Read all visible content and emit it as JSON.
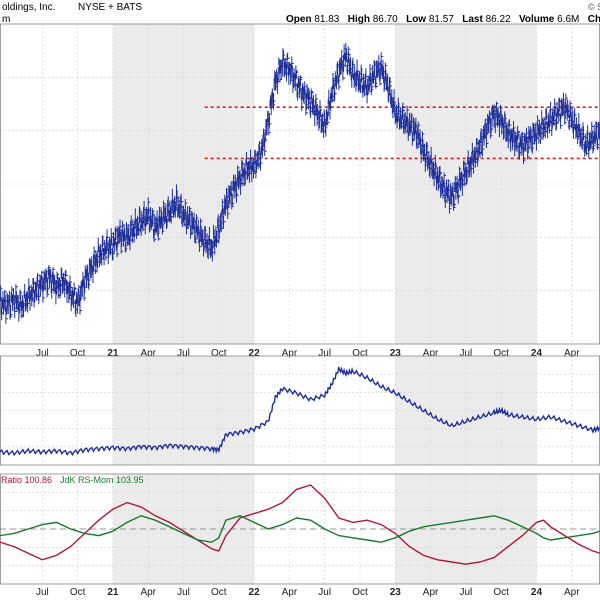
{
  "header": {
    "title": "oldings, Inc.",
    "exchange": "NYSE + BATS",
    "sub": "m",
    "logo_text": "© S",
    "quote": [
      {
        "label": "Open",
        "value": "81.83"
      },
      {
        "label": "High",
        "value": "86.70"
      },
      {
        "label": "Low",
        "value": "81.57"
      },
      {
        "label": "Last",
        "value": "86.22"
      },
      {
        "label": "Volume",
        "value": "6.6M"
      },
      {
        "label": "Chg",
        "value": "+"
      }
    ]
  },
  "rs_label": {
    "ratio_text": "Ratio 100.86",
    "mom_text": "JdK RS-Mom 103.95",
    "ratio_color": "#b0173a",
    "mom_color": "#1a7a2a"
  },
  "colors": {
    "price": "#1f2f9a",
    "support": "#d81e1e",
    "shade": "#ebebeb",
    "grid": "#cfcfcf"
  },
  "chart_data": [
    {
      "type": "line",
      "panel": "price",
      "x_ticks": [
        {
          "label": "Jul",
          "bold": false,
          "t": 0.5
        },
        {
          "label": "Oct",
          "bold": false,
          "t": 0.75
        },
        {
          "label": "21",
          "bold": true,
          "t": 1.0
        },
        {
          "label": "Apr",
          "bold": false,
          "t": 1.25
        },
        {
          "label": "Jul",
          "bold": false,
          "t": 1.5
        },
        {
          "label": "Oct",
          "bold": false,
          "t": 1.75
        },
        {
          "label": "22",
          "bold": true,
          "t": 2.0
        },
        {
          "label": "Apr",
          "bold": false,
          "t": 2.25
        },
        {
          "label": "Jul",
          "bold": false,
          "t": 2.5
        },
        {
          "label": "Oct",
          "bold": false,
          "t": 2.75
        },
        {
          "label": "23",
          "bold": true,
          "t": 3.0
        },
        {
          "label": "Apr",
          "bold": false,
          "t": 3.25
        },
        {
          "label": "Jul",
          "bold": false,
          "t": 3.5
        },
        {
          "label": "Oct",
          "bold": false,
          "t": 3.75
        },
        {
          "label": "24",
          "bold": true,
          "t": 4.0
        },
        {
          "label": "Apr",
          "bold": false,
          "t": 4.25
        }
      ],
      "shaded_years": [
        [
          1.0,
          2.0
        ],
        [
          3.0,
          4.0
        ]
      ],
      "x_range": [
        0.2,
        4.45
      ],
      "y_range": [
        0,
        100
      ],
      "resistance": 74,
      "support": 58,
      "series": [
        {
          "values": [
            [
              0.2,
              13
            ],
            [
              0.25,
              12
            ],
            [
              0.3,
              14
            ],
            [
              0.35,
              12
            ],
            [
              0.4,
              15
            ],
            [
              0.45,
              17
            ],
            [
              0.5,
              19
            ],
            [
              0.55,
              21
            ],
            [
              0.6,
              18
            ],
            [
              0.65,
              20
            ],
            [
              0.7,
              16
            ],
            [
              0.75,
              13
            ],
            [
              0.8,
              20
            ],
            [
              0.85,
              24
            ],
            [
              0.9,
              28
            ],
            [
              0.95,
              30
            ],
            [
              1.0,
              31
            ],
            [
              1.05,
              34
            ],
            [
              1.1,
              33
            ],
            [
              1.15,
              36
            ],
            [
              1.2,
              38
            ],
            [
              1.25,
              40
            ],
            [
              1.3,
              36
            ],
            [
              1.35,
              39
            ],
            [
              1.4,
              41
            ],
            [
              1.45,
              44
            ],
            [
              1.5,
              40
            ],
            [
              1.55,
              38
            ],
            [
              1.6,
              35
            ],
            [
              1.65,
              32
            ],
            [
              1.7,
              30
            ],
            [
              1.75,
              36
            ],
            [
              1.8,
              44
            ],
            [
              1.85,
              48
            ],
            [
              1.9,
              52
            ],
            [
              1.95,
              55
            ],
            [
              2.0,
              56
            ],
            [
              2.05,
              60
            ],
            [
              2.1,
              70
            ],
            [
              2.15,
              82
            ],
            [
              2.2,
              88
            ],
            [
              2.25,
              86
            ],
            [
              2.3,
              82
            ],
            [
              2.35,
              78
            ],
            [
              2.4,
              76
            ],
            [
              2.45,
              72
            ],
            [
              2.5,
              68
            ],
            [
              2.55,
              78
            ],
            [
              2.6,
              85
            ],
            [
              2.65,
              90
            ],
            [
              2.7,
              84
            ],
            [
              2.75,
              82
            ],
            [
              2.8,
              80
            ],
            [
              2.85,
              84
            ],
            [
              2.9,
              86
            ],
            [
              2.95,
              80
            ],
            [
              3.0,
              72
            ],
            [
              3.05,
              70
            ],
            [
              3.1,
              68
            ],
            [
              3.15,
              66
            ],
            [
              3.2,
              60
            ],
            [
              3.25,
              56
            ],
            [
              3.3,
              52
            ],
            [
              3.35,
              48
            ],
            [
              3.4,
              46
            ],
            [
              3.45,
              50
            ],
            [
              3.5,
              54
            ],
            [
              3.55,
              58
            ],
            [
              3.6,
              62
            ],
            [
              3.65,
              68
            ],
            [
              3.7,
              72
            ],
            [
              3.75,
              70
            ],
            [
              3.8,
              66
            ],
            [
              3.85,
              64
            ],
            [
              3.9,
              62
            ],
            [
              3.95,
              64
            ],
            [
              4.0,
              66
            ],
            [
              4.05,
              68
            ],
            [
              4.1,
              70
            ],
            [
              4.15,
              72
            ],
            [
              4.2,
              74
            ],
            [
              4.25,
              70
            ],
            [
              4.3,
              66
            ],
            [
              4.35,
              62
            ],
            [
              4.4,
              64
            ],
            [
              4.45,
              66
            ]
          ]
        }
      ]
    },
    {
      "type": "line",
      "panel": "relative-strength",
      "x_range": [
        0.2,
        4.45
      ],
      "y_range": [
        0,
        100
      ],
      "series": [
        {
          "values": [
            [
              0.2,
              12
            ],
            [
              0.3,
              11
            ],
            [
              0.4,
              13
            ],
            [
              0.5,
              12
            ],
            [
              0.6,
              13
            ],
            [
              0.7,
              11
            ],
            [
              0.8,
              14
            ],
            [
              0.9,
              15
            ],
            [
              1.0,
              16
            ],
            [
              1.1,
              15
            ],
            [
              1.2,
              17
            ],
            [
              1.3,
              16
            ],
            [
              1.4,
              18
            ],
            [
              1.5,
              17
            ],
            [
              1.6,
              16
            ],
            [
              1.7,
              15
            ],
            [
              1.75,
              14
            ],
            [
              1.8,
              28
            ],
            [
              1.9,
              30
            ],
            [
              2.0,
              33
            ],
            [
              2.1,
              40
            ],
            [
              2.15,
              62
            ],
            [
              2.2,
              70
            ],
            [
              2.3,
              66
            ],
            [
              2.4,
              60
            ],
            [
              2.5,
              64
            ],
            [
              2.55,
              74
            ],
            [
              2.6,
              88
            ],
            [
              2.65,
              84
            ],
            [
              2.7,
              86
            ],
            [
              2.8,
              80
            ],
            [
              2.9,
              72
            ],
            [
              3.0,
              66
            ],
            [
              3.1,
              58
            ],
            [
              3.2,
              50
            ],
            [
              3.3,
              42
            ],
            [
              3.4,
              36
            ],
            [
              3.5,
              40
            ],
            [
              3.6,
              44
            ],
            [
              3.7,
              48
            ],
            [
              3.75,
              50
            ],
            [
              3.8,
              46
            ],
            [
              3.9,
              44
            ],
            [
              4.0,
              42
            ],
            [
              4.1,
              44
            ],
            [
              4.2,
              40
            ],
            [
              4.3,
              36
            ],
            [
              4.4,
              32
            ],
            [
              4.45,
              34
            ]
          ]
        }
      ]
    },
    {
      "type": "line",
      "panel": "rrg-indicators",
      "x_range": [
        0.2,
        4.45
      ],
      "y_range": [
        0,
        100
      ],
      "baseline": 50,
      "series": [
        {
          "name": "Ratio",
          "values": [
            [
              0.2,
              38
            ],
            [
              0.3,
              34
            ],
            [
              0.4,
              28
            ],
            [
              0.5,
              22
            ],
            [
              0.6,
              26
            ],
            [
              0.7,
              34
            ],
            [
              0.8,
              46
            ],
            [
              0.9,
              58
            ],
            [
              1.0,
              68
            ],
            [
              1.1,
              74
            ],
            [
              1.2,
              70
            ],
            [
              1.3,
              62
            ],
            [
              1.4,
              56
            ],
            [
              1.5,
              48
            ],
            [
              1.6,
              40
            ],
            [
              1.7,
              32
            ],
            [
              1.75,
              30
            ],
            [
              1.8,
              44
            ],
            [
              1.9,
              60
            ],
            [
              2.0,
              64
            ],
            [
              2.1,
              68
            ],
            [
              2.2,
              74
            ],
            [
              2.3,
              86
            ],
            [
              2.4,
              90
            ],
            [
              2.5,
              78
            ],
            [
              2.6,
              60
            ],
            [
              2.7,
              56
            ],
            [
              2.8,
              58
            ],
            [
              2.9,
              54
            ],
            [
              3.0,
              46
            ],
            [
              3.1,
              34
            ],
            [
              3.2,
              26
            ],
            [
              3.3,
              22
            ],
            [
              3.4,
              20
            ],
            [
              3.5,
              18
            ],
            [
              3.6,
              20
            ],
            [
              3.7,
              24
            ],
            [
              3.8,
              34
            ],
            [
              3.9,
              44
            ],
            [
              4.0,
              56
            ],
            [
              4.05,
              58
            ],
            [
              4.1,
              52
            ],
            [
              4.2,
              44
            ],
            [
              4.3,
              36
            ],
            [
              4.4,
              30
            ],
            [
              4.45,
              28
            ]
          ]
        },
        {
          "name": "RS-Mom",
          "values": [
            [
              0.2,
              44
            ],
            [
              0.3,
              46
            ],
            [
              0.4,
              50
            ],
            [
              0.5,
              54
            ],
            [
              0.6,
              56
            ],
            [
              0.7,
              50
            ],
            [
              0.8,
              46
            ],
            [
              0.9,
              44
            ],
            [
              1.0,
              48
            ],
            [
              1.1,
              56
            ],
            [
              1.2,
              62
            ],
            [
              1.3,
              58
            ],
            [
              1.4,
              52
            ],
            [
              1.5,
              46
            ],
            [
              1.6,
              40
            ],
            [
              1.7,
              38
            ],
            [
              1.75,
              42
            ],
            [
              1.8,
              58
            ],
            [
              1.9,
              62
            ],
            [
              2.0,
              56
            ],
            [
              2.1,
              50
            ],
            [
              2.2,
              54
            ],
            [
              2.3,
              60
            ],
            [
              2.4,
              58
            ],
            [
              2.5,
              50
            ],
            [
              2.6,
              44
            ],
            [
              2.7,
              42
            ],
            [
              2.8,
              40
            ],
            [
              2.9,
              38
            ],
            [
              3.0,
              42
            ],
            [
              3.1,
              48
            ],
            [
              3.2,
              52
            ],
            [
              3.3,
              54
            ],
            [
              3.4,
              56
            ],
            [
              3.5,
              58
            ],
            [
              3.6,
              60
            ],
            [
              3.7,
              62
            ],
            [
              3.8,
              58
            ],
            [
              3.9,
              52
            ],
            [
              4.0,
              46
            ],
            [
              4.05,
              42
            ],
            [
              4.1,
              40
            ],
            [
              4.2,
              42
            ],
            [
              4.3,
              44
            ],
            [
              4.4,
              46
            ],
            [
              4.45,
              48
            ]
          ]
        }
      ]
    }
  ]
}
